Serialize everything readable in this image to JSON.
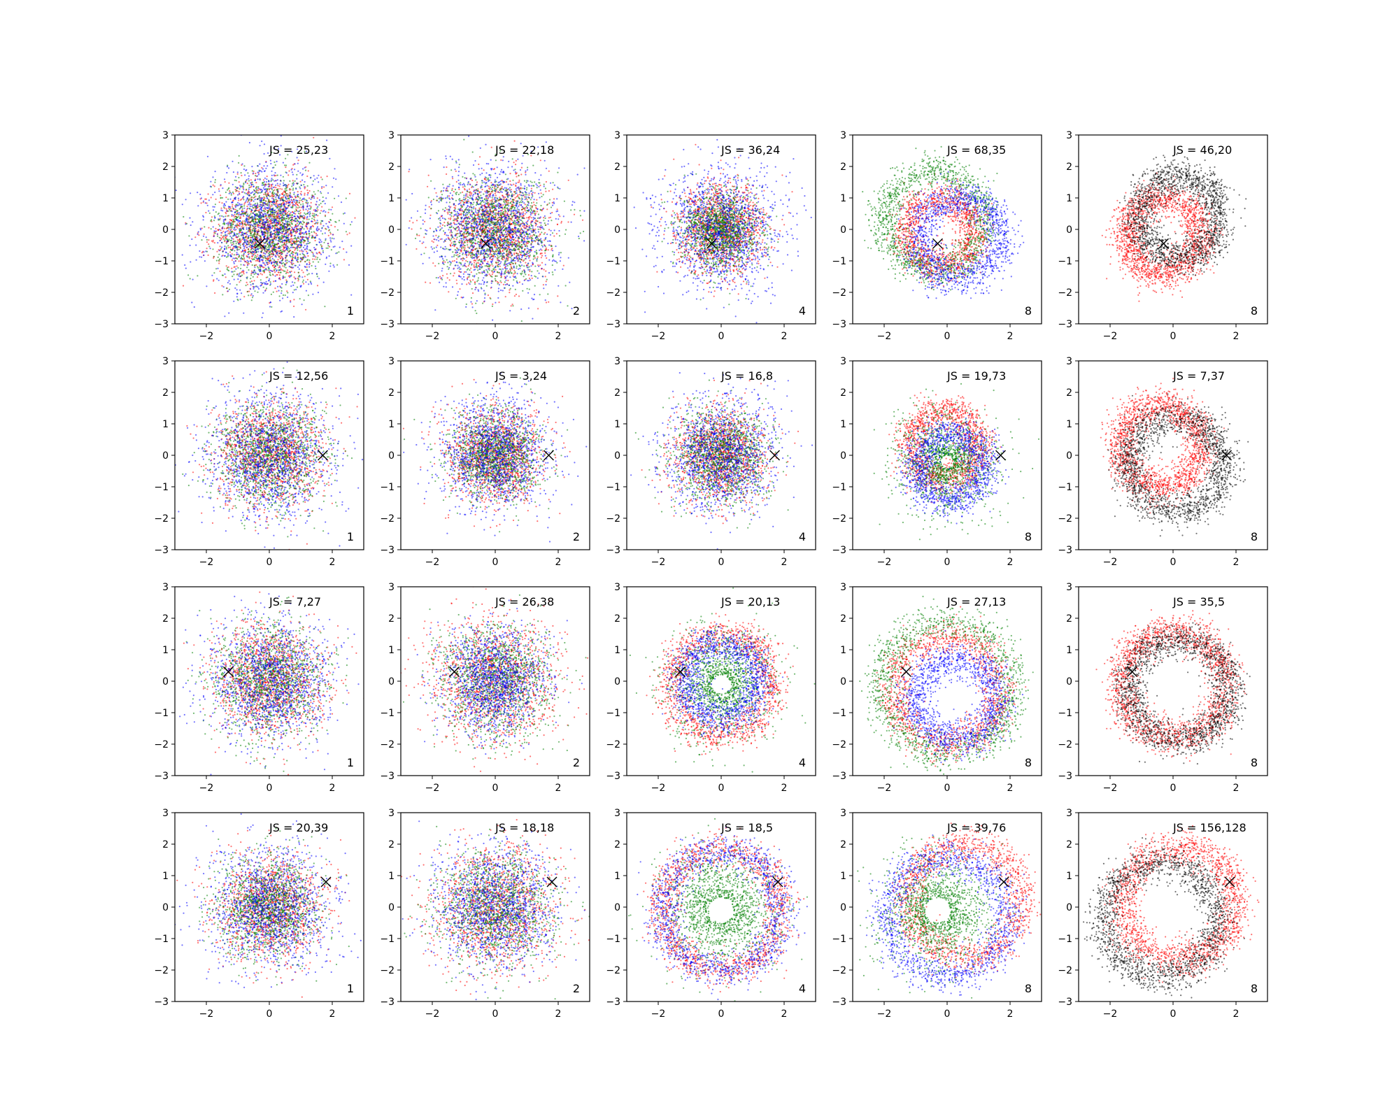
{
  "chart_data": {
    "type": "scatter",
    "layout": {
      "rows": 4,
      "cols": 5
    },
    "xlim": [
      -3,
      3
    ],
    "ylim": [
      -3,
      3
    ],
    "xticks": [
      -2,
      0,
      2
    ],
    "yticks": [
      -3,
      -2,
      -1,
      0,
      1,
      2,
      3
    ],
    "colors": {
      "red": "#ff0000",
      "green": "#008000",
      "blue": "#0000ff",
      "black": "#000000"
    },
    "panels": [
      {
        "js_label": "JS = 25,23",
        "corner_label": "1",
        "marker": [
          -0.3,
          -0.45
        ],
        "style": "cloud",
        "colors": [
          "red",
          "green",
          "blue"
        ],
        "scale": [
          0.85,
          0.85,
          1.0
        ]
      },
      {
        "js_label": "JS = 22,18",
        "corner_label": "2",
        "marker": [
          -0.3,
          -0.45
        ],
        "style": "cloud",
        "colors": [
          "red",
          "green",
          "blue"
        ],
        "scale": [
          0.85,
          0.85,
          1.0
        ]
      },
      {
        "js_label": "JS = 36,24",
        "corner_label": "4",
        "marker": [
          -0.3,
          -0.45
        ],
        "style": "cloud",
        "colors": [
          "red",
          "green",
          "blue"
        ],
        "scale": [
          0.7,
          0.6,
          0.95
        ]
      },
      {
        "js_label": "JS = 68,35",
        "corner_label": "8",
        "marker": [
          -0.3,
          -0.45
        ],
        "style": "ring",
        "colors": [
          "red",
          "green",
          "blue"
        ],
        "ring_radius": [
          1.1,
          1.6,
          1.3
        ],
        "ring_center": [
          [
            -0.2,
            -0.1
          ],
          [
            -0.4,
            0.3
          ],
          [
            0.4,
            -0.3
          ]
        ]
      },
      {
        "js_label": "JS = 46,20",
        "corner_label": "8",
        "marker": [
          -0.3,
          -0.45
        ],
        "style": "ring2",
        "colors": [
          "red",
          "black"
        ],
        "ring_radius": [
          1.2,
          1.3
        ],
        "ring_center": [
          [
            -0.3,
            -0.2
          ],
          [
            0.2,
            0.4
          ]
        ]
      },
      {
        "js_label": "JS = 12,56",
        "corner_label": "1",
        "marker": [
          1.7,
          0.0
        ],
        "style": "cloud",
        "colors": [
          "red",
          "green",
          "blue"
        ],
        "scale": [
          0.85,
          0.85,
          1.0
        ]
      },
      {
        "js_label": "JS = 3,24",
        "corner_label": "2",
        "marker": [
          1.7,
          0.0
        ],
        "style": "cloud",
        "colors": [
          "red",
          "green",
          "blue"
        ],
        "scale": [
          0.75,
          0.7,
          0.85
        ]
      },
      {
        "js_label": "JS = 16,8",
        "corner_label": "4",
        "marker": [
          1.7,
          0.0
        ],
        "style": "cloud",
        "colors": [
          "red",
          "green",
          "blue"
        ],
        "scale": [
          0.75,
          0.75,
          0.9
        ]
      },
      {
        "js_label": "JS = 19,73",
        "corner_label": "8",
        "marker": [
          1.7,
          0.0
        ],
        "style": "ring",
        "colors": [
          "red",
          "green",
          "blue"
        ],
        "ring_radius": [
          1.1,
          0.2,
          1.1
        ],
        "ring_center": [
          [
            -0.1,
            0.3
          ],
          [
            0.0,
            -0.2
          ],
          [
            0.1,
            -0.4
          ]
        ]
      },
      {
        "js_label": "JS = 7,37",
        "corner_label": "8",
        "marker": [
          1.7,
          0.0
        ],
        "style": "ring2",
        "colors": [
          "red",
          "black"
        ],
        "ring_radius": [
          1.3,
          1.5
        ],
        "ring_center": [
          [
            -0.4,
            0.3
          ],
          [
            0.1,
            -0.3
          ]
        ]
      },
      {
        "js_label": "JS = 7,27",
        "corner_label": "1",
        "marker": [
          -1.3,
          0.3
        ],
        "style": "cloud",
        "colors": [
          "red",
          "green",
          "blue"
        ],
        "scale": [
          0.9,
          0.9,
          0.95
        ]
      },
      {
        "js_label": "JS = 26,38",
        "corner_label": "2",
        "marker": [
          -1.3,
          0.3
        ],
        "style": "cloud",
        "colors": [
          "red",
          "green",
          "blue"
        ],
        "scale": [
          1.0,
          0.9,
          0.8
        ]
      },
      {
        "js_label": "JS = 20,13",
        "corner_label": "4",
        "marker": [
          -1.3,
          0.3
        ],
        "style": "ring",
        "colors": [
          "red",
          "green",
          "blue"
        ],
        "ring_radius": [
          1.6,
          0.3,
          1.2
        ],
        "ring_center": [
          [
            0.0,
            -0.1
          ],
          [
            0.0,
            -0.1
          ],
          [
            0.0,
            0.0
          ]
        ]
      },
      {
        "js_label": "JS = 27,13",
        "corner_label": "8",
        "marker": [
          -1.3,
          0.3
        ],
        "style": "ring",
        "colors": [
          "red",
          "green",
          "blue"
        ],
        "ring_radius": [
          1.7,
          2.1,
          1.3
        ],
        "ring_center": [
          [
            0.0,
            -0.3
          ],
          [
            0.0,
            -0.2
          ],
          [
            0.3,
            -0.6
          ]
        ]
      },
      {
        "js_label": "JS = 35,5",
        "corner_label": "8",
        "marker": [
          -1.3,
          0.3
        ],
        "style": "ring2",
        "colors": [
          "red",
          "black"
        ],
        "ring_radius": [
          1.7,
          1.6
        ],
        "ring_center": [
          [
            0.0,
            -0.1
          ],
          [
            0.2,
            -0.3
          ]
        ]
      },
      {
        "js_label": "JS = 20,39",
        "corner_label": "1",
        "marker": [
          1.8,
          0.8
        ],
        "style": "cloud",
        "colors": [
          "red",
          "green",
          "blue"
        ],
        "scale": [
          0.85,
          0.8,
          1.0
        ]
      },
      {
        "js_label": "JS = 18,18",
        "corner_label": "2",
        "marker": [
          1.8,
          0.8
        ],
        "style": "cloud",
        "colors": [
          "red",
          "green",
          "blue"
        ],
        "scale": [
          1.0,
          0.9,
          0.95
        ]
      },
      {
        "js_label": "JS = 18,5",
        "corner_label": "4",
        "marker": [
          1.8,
          0.8
        ],
        "style": "ring",
        "colors": [
          "red",
          "green",
          "blue"
        ],
        "ring_radius": [
          1.9,
          0.4,
          1.9
        ],
        "ring_center": [
          [
            0.0,
            -0.1
          ],
          [
            0.0,
            -0.1
          ],
          [
            0.0,
            -0.1
          ]
        ]
      },
      {
        "js_label": "JS = 39,76",
        "corner_label": "8",
        "marker": [
          1.8,
          0.8
        ],
        "style": "ring",
        "colors": [
          "red",
          "green",
          "blue"
        ],
        "ring_radius": [
          1.8,
          0.4,
          1.9
        ],
        "ring_center": [
          [
            0.6,
            0.2
          ],
          [
            -0.3,
            -0.1
          ],
          [
            0.0,
            -0.3
          ]
        ]
      },
      {
        "js_label": "JS = 156,128",
        "corner_label": "8",
        "marker": [
          1.8,
          0.8
        ],
        "style": "ring2",
        "colors": [
          "red",
          "black"
        ],
        "ring_radius": [
          1.8,
          1.8
        ],
        "ring_center": [
          [
            0.2,
            0.1
          ],
          [
            -0.4,
            -0.4
          ]
        ]
      }
    ]
  }
}
